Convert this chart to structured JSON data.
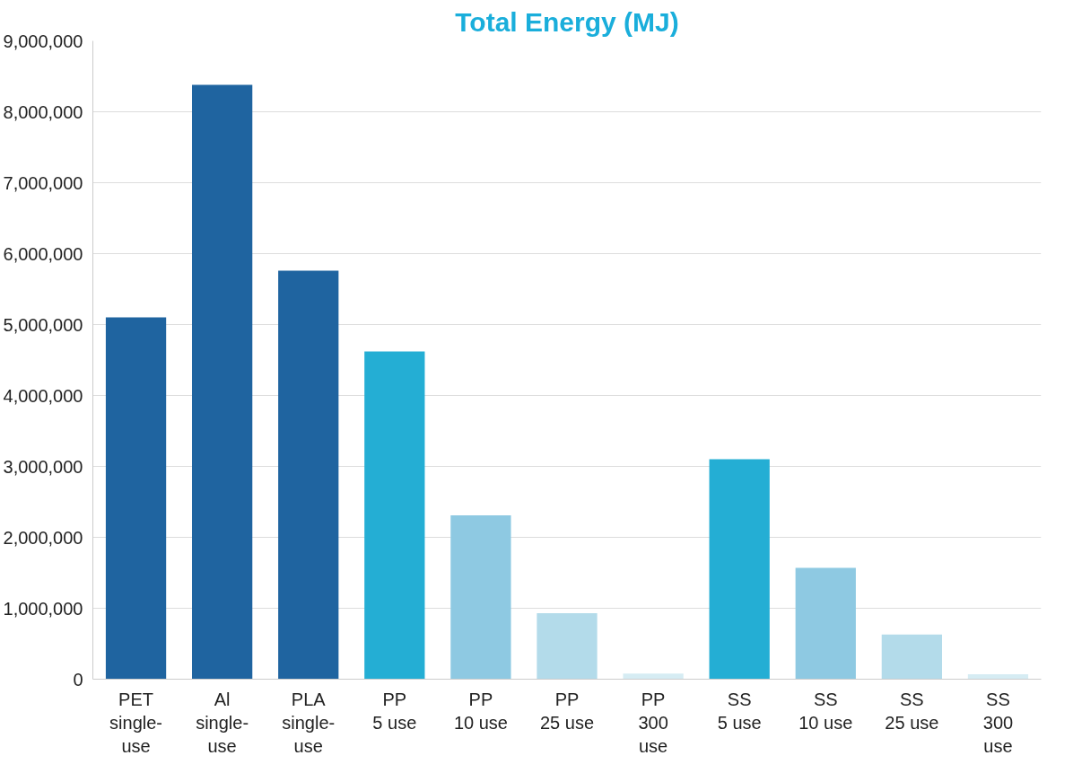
{
  "chart_data": {
    "type": "bar",
    "title": "Total Energy (MJ)",
    "categories": [
      "PET\nsingle-\nuse",
      "Al\nsingle-\nuse",
      "PLA\nsingle-\nuse",
      "PP\n5 use",
      "PP\n10 use",
      "PP\n25 use",
      "PP\n300\nuse",
      "SS\n5 use",
      "SS\n10 use",
      "SS\n25 use",
      "SS\n300\nuse"
    ],
    "values": [
      5100000,
      8380000,
      5760000,
      4620000,
      2310000,
      930000,
      80000,
      3100000,
      1570000,
      630000,
      70000
    ],
    "colors": [
      "#1f64a0",
      "#1f64a0",
      "#1f64a0",
      "#24aed4",
      "#8ec9e2",
      "#b3dbea",
      "#d6ecf3",
      "#24aed4",
      "#8ec9e2",
      "#b3dbea",
      "#d6ecf3"
    ],
    "ylim": [
      0,
      9000000
    ],
    "yticks": [
      {
        "value": 0,
        "label": "0"
      },
      {
        "value": 1000000,
        "label": "1,000,000"
      },
      {
        "value": 2000000,
        "label": "2,000,000"
      },
      {
        "value": 3000000,
        "label": "3,000,000"
      },
      {
        "value": 4000000,
        "label": "4,000,000"
      },
      {
        "value": 5000000,
        "label": "5,000,000"
      },
      {
        "value": 6000000,
        "label": "6,000,000"
      },
      {
        "value": 7000000,
        "label": "7,000,000"
      },
      {
        "value": 8000000,
        "label": "8,000,000"
      },
      {
        "value": 9000000,
        "label": "9,000,000"
      }
    ],
    "grid": "y"
  }
}
